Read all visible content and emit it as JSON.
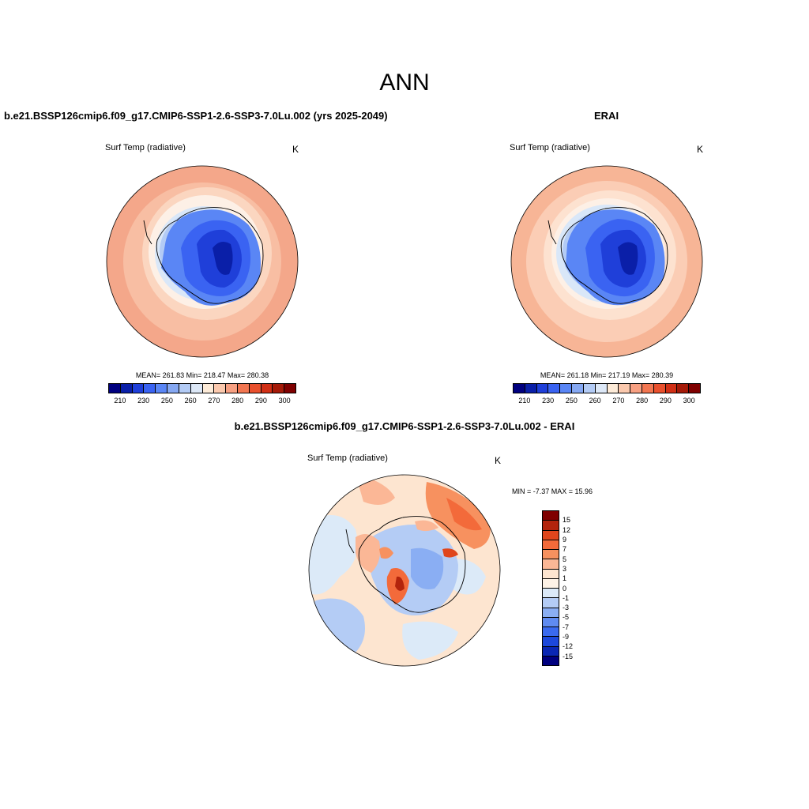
{
  "title": "ANN",
  "panels": [
    {
      "title": "b.e21.BSSP126cmip6.f09_g17.CMIP6-SSP1-2.6-SSP3-7.0Lu.002 (yrs 2025-2049)",
      "variable": "Surf Temp (radiative)",
      "units": "K",
      "stats": "MEAN= 261.83  Min= 218.47  Max= 280.38"
    },
    {
      "title": "ERAI",
      "variable": "Surf Temp (radiative)",
      "units": "K",
      "stats": "MEAN= 261.18  Min= 217.19  Max= 280.39"
    },
    {
      "title": "b.e21.BSSP126cmip6.f09_g17.CMIP6-SSP1-2.6-SSP3-7.0Lu.002 - ERAI",
      "variable": "Surf Temp (radiative)",
      "units": "K",
      "stats": "MIN =  -7.37 MAX =  15.96"
    }
  ],
  "abs_colorbar": {
    "colors": [
      "#00007f",
      "#0a1fa8",
      "#1f3fd9",
      "#3a63f2",
      "#5a86f5",
      "#86a8f2",
      "#b3cbf5",
      "#dde8f7",
      "#fdebd8",
      "#fbc9ae",
      "#f7a082",
      "#f27651",
      "#e9502d",
      "#d12f15",
      "#a51a08",
      "#7f0000"
    ],
    "labels": [
      "210",
      "230",
      "250",
      "260",
      "270",
      "280",
      "290",
      "300"
    ]
  },
  "diff_colorbar": {
    "colors": [
      "#7f0000",
      "#b3240c",
      "#e0461c",
      "#f36a3a",
      "#f7915f",
      "#fbb796",
      "#fde5d0",
      "#dceaf8",
      "#b4ccf5",
      "#8aaef3",
      "#5f8bf1",
      "#3a6aef",
      "#1c48dc",
      "#0a27b4",
      "#00007f"
    ],
    "labels": [
      "15",
      "12",
      "9",
      "7",
      "5",
      "3",
      "1",
      "0",
      "-1",
      "-3",
      "-5",
      "-7",
      "-9",
      "-12",
      "-15"
    ]
  }
}
